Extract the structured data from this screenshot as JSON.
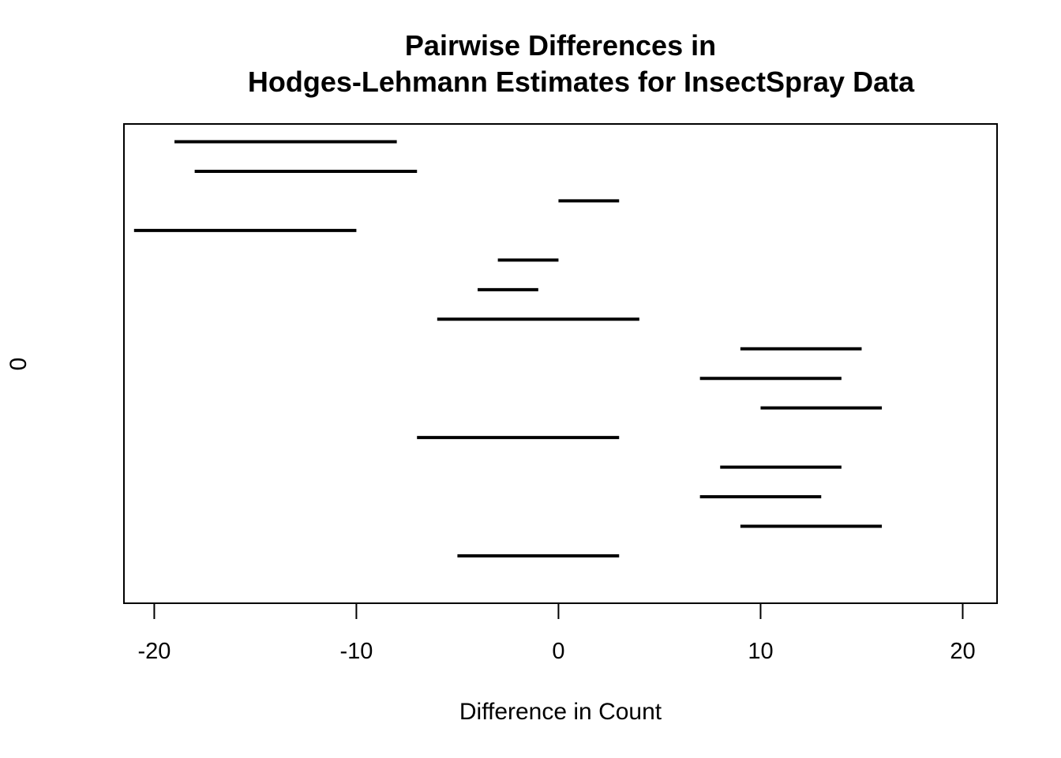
{
  "chart_data": {
    "type": "interval",
    "title_lines": [
      "Pairwise Differences in",
      "Hodges-Lehmann Estimates for InsectSpray Data"
    ],
    "xlabel": "Difference in Count",
    "ylabel": "0",
    "xlim": [
      -21.5,
      21.7
    ],
    "xticks": [
      -20,
      -10,
      0,
      10,
      20
    ],
    "xtick_labels": [
      "-20",
      "-10",
      "0",
      "10",
      "20"
    ],
    "intervals": [
      {
        "lower": -19,
        "upper": -8
      },
      {
        "lower": -18,
        "upper": -7
      },
      {
        "lower": 0,
        "upper": 3
      },
      {
        "lower": -21,
        "upper": -10
      },
      {
        "lower": -3,
        "upper": 0
      },
      {
        "lower": -4,
        "upper": -1
      },
      {
        "lower": -6,
        "upper": 4
      },
      {
        "lower": 9,
        "upper": 15
      },
      {
        "lower": 7,
        "upper": 14
      },
      {
        "lower": 10,
        "upper": 16
      },
      {
        "lower": -7,
        "upper": 3
      },
      {
        "lower": 8,
        "upper": 14
      },
      {
        "lower": 7,
        "upper": 13
      },
      {
        "lower": 9,
        "upper": 16
      },
      {
        "lower": -5,
        "upper": 3
      }
    ]
  }
}
